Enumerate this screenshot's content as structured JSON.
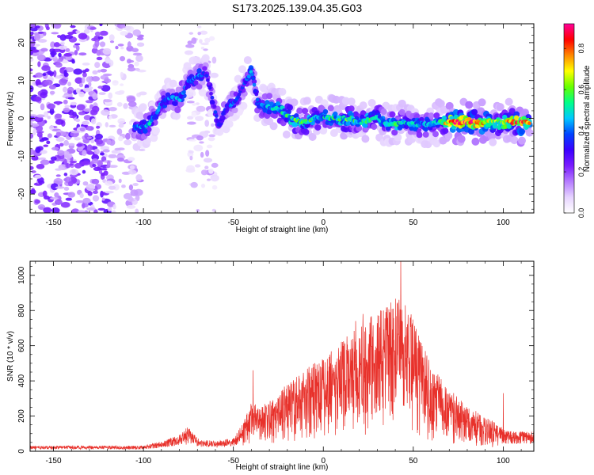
{
  "title": "S173.2025.139.04.35.G03",
  "colors": {
    "spectrogram_colormap": [
      "#ffffff",
      "#e6d3ff",
      "#b57bff",
      "#7a1cff",
      "#3a00ff",
      "#0044ff",
      "#00c8ff",
      "#00ff88",
      "#66ff00",
      "#ffff00",
      "#ff8800",
      "#ff0000",
      "#ff0099"
    ],
    "snr_line": "#e8312b"
  },
  "chart_data": [
    {
      "type": "heatmap",
      "xlabel": "Height of straight line (km)",
      "ylabel": "Frequency (Hz)",
      "xlim": [
        -163,
        117
      ],
      "ylim": [
        -25,
        25
      ],
      "x_ticks": [
        -150,
        -100,
        -50,
        0,
        50,
        100
      ],
      "y_ticks": [
        -20,
        -10,
        0,
        10,
        20
      ],
      "colorbar": {
        "label": "Normalized spectral amplitude",
        "range": [
          0,
          0.92
        ],
        "ticks": [
          0.0,
          0.2,
          0.4,
          0.6,
          0.8
        ]
      },
      "ridge": [
        {
          "x": -105,
          "f": -2.5,
          "a": 0.35
        },
        {
          "x": -98,
          "f": -2,
          "a": 0.45
        },
        {
          "x": -93,
          "f": 1,
          "a": 0.35
        },
        {
          "x": -90,
          "f": 4,
          "a": 0.4
        },
        {
          "x": -85,
          "f": 5.5,
          "a": 0.35
        },
        {
          "x": -80,
          "f": 5,
          "a": 0.4
        },
        {
          "x": -75,
          "f": 9.5,
          "a": 0.35
        },
        {
          "x": -70,
          "f": 11,
          "a": 0.4
        },
        {
          "x": -65,
          "f": 12,
          "a": 0.3
        },
        {
          "x": -58,
          "f": -2,
          "a": 0.35
        },
        {
          "x": -55,
          "f": 2,
          "a": 0.35
        },
        {
          "x": -50,
          "f": 4,
          "a": 0.35
        },
        {
          "x": -46,
          "f": 7,
          "a": 0.3
        },
        {
          "x": -40,
          "f": 12.5,
          "a": 0.4
        },
        {
          "x": -36,
          "f": 3.5,
          "a": 0.4
        },
        {
          "x": -30,
          "f": 3,
          "a": 0.45
        },
        {
          "x": -25,
          "f": 2.5,
          "a": 0.5
        },
        {
          "x": -20,
          "f": 0.5,
          "a": 0.5
        },
        {
          "x": -15,
          "f": -0.5,
          "a": 0.55
        },
        {
          "x": -10,
          "f": -1,
          "a": 0.5
        },
        {
          "x": -5,
          "f": 0,
          "a": 0.5
        },
        {
          "x": 0,
          "f": 0.5,
          "a": 0.45
        },
        {
          "x": 5,
          "f": 0,
          "a": 0.5
        },
        {
          "x": 10,
          "f": 0,
          "a": 0.5
        },
        {
          "x": 15,
          "f": 0,
          "a": 0.55
        },
        {
          "x": 20,
          "f": -1,
          "a": 0.45
        },
        {
          "x": 25,
          "f": -0.5,
          "a": 0.5
        },
        {
          "x": 30,
          "f": 0.5,
          "a": 0.45
        },
        {
          "x": 35,
          "f": -1.5,
          "a": 0.45
        },
        {
          "x": 40,
          "f": -1.5,
          "a": 0.5
        },
        {
          "x": 45,
          "f": -1,
          "a": 0.45
        },
        {
          "x": 50,
          "f": -1.5,
          "a": 0.45
        },
        {
          "x": 55,
          "f": -1.5,
          "a": 0.4
        },
        {
          "x": 60,
          "f": -1.5,
          "a": 0.4
        },
        {
          "x": 65,
          "f": -1,
          "a": 0.5
        },
        {
          "x": 70,
          "f": -1,
          "a": 0.75
        },
        {
          "x": 75,
          "f": -1,
          "a": 0.78
        },
        {
          "x": 80,
          "f": -1,
          "a": 0.8
        },
        {
          "x": 85,
          "f": -1,
          "a": 0.78
        },
        {
          "x": 90,
          "f": -1,
          "a": 0.75
        },
        {
          "x": 95,
          "f": -1,
          "a": 0.55
        },
        {
          "x": 100,
          "f": -1,
          "a": 0.6
        },
        {
          "x": 105,
          "f": -1,
          "a": 0.7
        },
        {
          "x": 110,
          "f": -1,
          "a": 0.75
        },
        {
          "x": 115,
          "f": -1,
          "a": 0.75
        }
      ],
      "noise_regions": [
        {
          "x": [
            -163,
            -120
          ],
          "f": [
            -25,
            25
          ],
          "level": 0.2
        },
        {
          "x": [
            -120,
            -100
          ],
          "f": [
            -25,
            25
          ],
          "level": 0.12
        },
        {
          "x": [
            -75,
            -60
          ],
          "f": [
            -25,
            25
          ],
          "level": 0.1
        }
      ]
    },
    {
      "type": "line",
      "xlabel": "Height of straight line (km)",
      "ylabel": "SNR (10 * v/v)",
      "xlim": [
        -163,
        117
      ],
      "ylim": [
        0,
        1080
      ],
      "x_ticks": [
        -150,
        -100,
        -50,
        0,
        50,
        100
      ],
      "y_ticks": [
        0,
        200,
        400,
        600,
        800,
        1000
      ],
      "envelope": [
        {
          "x": -163,
          "y": 25
        },
        {
          "x": -100,
          "y": 25
        },
        {
          "x": -90,
          "y": 45
        },
        {
          "x": -80,
          "y": 75
        },
        {
          "x": -75,
          "y": 110
        },
        {
          "x": -70,
          "y": 60
        },
        {
          "x": -60,
          "y": 45
        },
        {
          "x": -50,
          "y": 60
        },
        {
          "x": -45,
          "y": 120
        },
        {
          "x": -40,
          "y": 220
        },
        {
          "x": -35,
          "y": 190
        },
        {
          "x": -25,
          "y": 260
        },
        {
          "x": -15,
          "y": 330
        },
        {
          "x": -5,
          "y": 390
        },
        {
          "x": 5,
          "y": 440
        },
        {
          "x": 15,
          "y": 520
        },
        {
          "x": 25,
          "y": 580
        },
        {
          "x": 35,
          "y": 640
        },
        {
          "x": 40,
          "y": 680
        },
        {
          "x": 45,
          "y": 660
        },
        {
          "x": 50,
          "y": 580
        },
        {
          "x": 55,
          "y": 470
        },
        {
          "x": 60,
          "y": 380
        },
        {
          "x": 70,
          "y": 280
        },
        {
          "x": 80,
          "y": 200
        },
        {
          "x": 90,
          "y": 150
        },
        {
          "x": 95,
          "y": 130
        },
        {
          "x": 100,
          "y": 100
        },
        {
          "x": 105,
          "y": 90
        },
        {
          "x": 117,
          "y": 90
        }
      ],
      "peaks": [
        {
          "x": -39,
          "y": 460
        },
        {
          "x": 18,
          "y": 740
        },
        {
          "x": 22,
          "y": 780
        },
        {
          "x": 37,
          "y": 790
        },
        {
          "x": 41,
          "y": 840
        },
        {
          "x": 43,
          "y": 1080
        },
        {
          "x": 100,
          "y": 330
        }
      ]
    }
  ]
}
